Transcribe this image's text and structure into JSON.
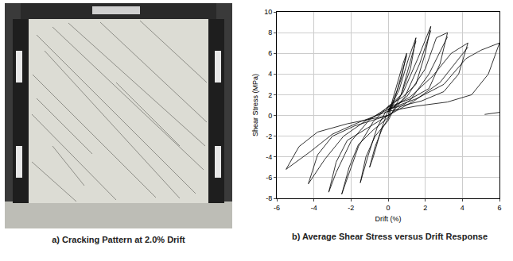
{
  "photo": {
    "caption": "a) Cracking Pattern at 2.0% Drift"
  },
  "chart_data": {
    "type": "line",
    "caption": "b) Average Shear Stress versus Drift Response",
    "x_label": "Drift (%)",
    "y_label": "Shear Stress (MPa)",
    "color": "#000000",
    "grid": true,
    "xlim": [
      -6,
      6
    ],
    "xticks": [
      -6,
      -4,
      -2,
      0,
      2,
      4,
      6
    ],
    "ylim": [
      -8,
      10
    ],
    "yticks": [
      -8,
      -6,
      -4,
      -2,
      0,
      2,
      4,
      6,
      8,
      10
    ],
    "series": [
      {
        "x": [
          0,
          0.4,
          0.8,
          1.0,
          0.7,
          0.3,
          0,
          -0.4,
          -0.8,
          -1.0,
          -0.7,
          -0.3,
          0,
          0.5,
          1.0
        ],
        "values": [
          0,
          2.5,
          5.0,
          6.0,
          3.5,
          1.5,
          0.5,
          -1.5,
          -4.0,
          -5.0,
          -3.0,
          -1.2,
          -0.3,
          2.5,
          5.8
        ]
      },
      {
        "x": [
          0,
          0.6,
          1.1,
          1.5,
          1.2,
          0.7,
          0,
          -0.6,
          -1.1,
          -1.5,
          -1.2,
          -0.7,
          0,
          0.7,
          1.5
        ],
        "values": [
          0.3,
          2.5,
          5.5,
          7.5,
          4.5,
          2.0,
          0.8,
          -1.2,
          -4.0,
          -6.5,
          -4.0,
          -2.0,
          -0.5,
          2.0,
          7.2
        ]
      },
      {
        "x": [
          0,
          0.8,
          1.6,
          2.3,
          2.0,
          1.5,
          0.8,
          0,
          -0.8,
          -1.6,
          -2.5,
          -2.1,
          -1.6,
          -0.8,
          0,
          0.9,
          1.7,
          2.3
        ],
        "values": [
          0.5,
          2.2,
          5.5,
          8.6,
          6.0,
          3.0,
          1.8,
          0.9,
          -0.6,
          -3.0,
          -7.6,
          -5.0,
          -2.8,
          -1.4,
          -0.2,
          1.8,
          5.0,
          8.2
        ]
      },
      {
        "x": [
          0,
          1,
          2,
          2.6,
          3.2,
          2.8,
          2.2,
          1.2,
          0,
          -1,
          -2,
          -2.8,
          -3.2,
          -2.8,
          -2.2,
          -1.2,
          0,
          1.2,
          2.2,
          3.2
        ],
        "values": [
          0.4,
          1.8,
          4.5,
          7.5,
          8.0,
          5.0,
          2.6,
          1.6,
          0.8,
          -0.4,
          -2.5,
          -5.5,
          -7.4,
          -4.5,
          -2.4,
          -1.3,
          0,
          1.5,
          4.0,
          7.6
        ]
      },
      {
        "x": [
          0,
          1.2,
          2.4,
          3.4,
          4.3,
          3.8,
          3.0,
          1.8,
          0,
          -1.2,
          -2.4,
          -3.4,
          -4.3,
          -3.8,
          -3.0,
          -1.8,
          0,
          1.4,
          2.8,
          4.3
        ],
        "values": [
          0.6,
          1.8,
          3.8,
          6.0,
          7.0,
          4.0,
          2.3,
          1.4,
          0.6,
          -0.5,
          -2.0,
          -4.2,
          -6.6,
          -3.8,
          -2.0,
          -1.0,
          0,
          1.4,
          3.2,
          6.6
        ]
      },
      {
        "x": [
          0,
          1.5,
          3,
          4.2,
          5,
          6.0,
          5.4,
          4.5,
          3.2,
          1.5,
          0,
          -1.5,
          -3,
          -4.2,
          -5.5,
          -4.8,
          -3.8,
          -2.2,
          0
        ],
        "values": [
          0.6,
          1.6,
          3.0,
          5.5,
          6.3,
          7.0,
          4.0,
          2.0,
          1.3,
          0.9,
          0.4,
          -0.6,
          -1.8,
          -3.5,
          -5.2,
          -3.0,
          -1.6,
          -0.8,
          0
        ]
      },
      {
        "x": [
          5.2,
          6.0
        ],
        "values": [
          0.1,
          0.3
        ]
      }
    ]
  }
}
